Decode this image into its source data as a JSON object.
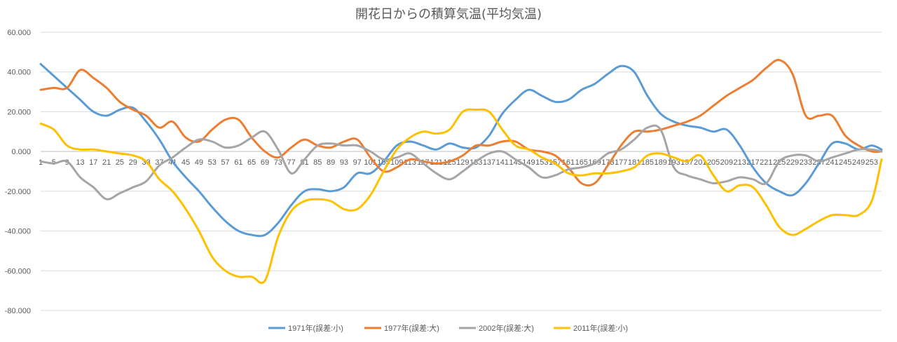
{
  "chart_data": {
    "type": "line",
    "title": "開花日からの積算気温(平均気温)",
    "xlabel": "",
    "ylabel": "",
    "ylim": [
      -80,
      60
    ],
    "yticks": [
      60,
      40,
      20,
      0,
      -20,
      -40,
      -60,
      -80
    ],
    "ytick_labels": [
      "60.000",
      "40.000",
      "20.000",
      "0.000",
      "-20.000",
      "-40.000",
      "-60.000",
      "-80.000"
    ],
    "x_range": [
      1,
      256
    ],
    "x_tick_labels": [
      1,
      5,
      9,
      13,
      17,
      21,
      25,
      29,
      33,
      37,
      41,
      45,
      49,
      53,
      57,
      61,
      65,
      69,
      73,
      77,
      81,
      85,
      89,
      93,
      97,
      101,
      105,
      109,
      113,
      117,
      121,
      125,
      129,
      133,
      137,
      141,
      145,
      149,
      153,
      157,
      161,
      165,
      169,
      173,
      177,
      181,
      185,
      189,
      193,
      197,
      201,
      205,
      209,
      213,
      217,
      221,
      225,
      229,
      233,
      237,
      241,
      245,
      249,
      253
    ],
    "grid": true,
    "legend_position": "bottom",
    "series": [
      {
        "name": "1971年(誤差:小)",
        "color": "#5b9bd5",
        "x": [
          1,
          5,
          9,
          13,
          17,
          21,
          25,
          29,
          33,
          37,
          41,
          45,
          49,
          53,
          57,
          61,
          65,
          69,
          73,
          77,
          81,
          85,
          89,
          93,
          97,
          101,
          105,
          109,
          113,
          117,
          121,
          125,
          129,
          133,
          137,
          141,
          145,
          149,
          153,
          157,
          161,
          165,
          169,
          173,
          177,
          181,
          185,
          189,
          193,
          197,
          201,
          205,
          209,
          213,
          217,
          221,
          225,
          229,
          233,
          237,
          241,
          245,
          249,
          253,
          256
        ],
        "y": [
          44,
          38,
          32,
          26,
          20,
          18,
          21,
          22,
          15,
          6,
          -5,
          -13,
          -20,
          -28,
          -35,
          -40,
          -42,
          -42,
          -36,
          -27,
          -20,
          -19,
          -20,
          -18,
          -11,
          -11,
          -5,
          3,
          5,
          3,
          1,
          4,
          2,
          2,
          8,
          19,
          26,
          31,
          28,
          25,
          26,
          31,
          34,
          39,
          43,
          40,
          28,
          19,
          15,
          13,
          12,
          10,
          11,
          3,
          -8,
          -16,
          -20,
          -22,
          -16,
          -6,
          4,
          4,
          1,
          3,
          1
        ]
      },
      {
        "name": "1977年(誤差:大)",
        "color": "#ed7d31",
        "x": [
          1,
          5,
          9,
          13,
          17,
          21,
          25,
          29,
          33,
          37,
          41,
          45,
          49,
          53,
          57,
          61,
          65,
          69,
          73,
          77,
          81,
          85,
          89,
          93,
          97,
          101,
          105,
          109,
          113,
          117,
          121,
          125,
          129,
          133,
          137,
          141,
          145,
          149,
          153,
          157,
          161,
          165,
          169,
          173,
          177,
          181,
          185,
          189,
          193,
          197,
          201,
          205,
          209,
          213,
          217,
          221,
          225,
          229,
          233,
          237,
          241,
          245,
          249,
          253,
          256
        ],
        "y": [
          31,
          32,
          32,
          41,
          37,
          32,
          25,
          21,
          18,
          12,
          15,
          7,
          5,
          11,
          16,
          16,
          7,
          0,
          -3,
          2,
          6,
          3,
          2,
          5,
          6,
          -3,
          -10,
          -8,
          -4,
          -5,
          -6,
          -5,
          -2,
          3,
          3,
          5,
          5,
          1,
          0,
          -2,
          -8,
          -16,
          -16,
          -7,
          3,
          10,
          10,
          11,
          13,
          15,
          18,
          23,
          28,
          32,
          36,
          42,
          46,
          39,
          18,
          18,
          18,
          8,
          3,
          0,
          0
        ]
      },
      {
        "name": "2002年(誤差:大)",
        "color": "#a5a5a5",
        "x": [
          1,
          5,
          9,
          13,
          17,
          21,
          25,
          29,
          33,
          37,
          41,
          45,
          49,
          53,
          57,
          61,
          65,
          69,
          73,
          77,
          81,
          85,
          89,
          93,
          97,
          101,
          105,
          109,
          113,
          117,
          121,
          125,
          129,
          133,
          137,
          141,
          145,
          149,
          153,
          157,
          161,
          165,
          169,
          173,
          177,
          181,
          185,
          189,
          193,
          197,
          201,
          205,
          209,
          213,
          217,
          221,
          225,
          229,
          233,
          237,
          241,
          245,
          249,
          253,
          256
        ],
        "y": [
          -5,
          -6,
          -5,
          -13,
          -18,
          -24,
          -21,
          -18,
          -15,
          -7,
          -3,
          2,
          6,
          5,
          2,
          3,
          7,
          10,
          1,
          -11,
          -4,
          3,
          4,
          3,
          3,
          0,
          -4,
          -3,
          -1,
          -6,
          -11,
          -14,
          -10,
          -5,
          -1,
          0,
          -4,
          -8,
          -13,
          -12,
          -9,
          -8,
          -6,
          -1,
          1,
          6,
          12,
          11,
          -8,
          -12,
          -14,
          -16,
          -15,
          -13,
          -14,
          -16,
          -5,
          -2,
          -2,
          -5,
          -3,
          -1,
          1,
          1,
          0
        ]
      },
      {
        "name": "2011年(誤差:小)",
        "color": "#ffc000",
        "x": [
          1,
          5,
          9,
          13,
          17,
          21,
          25,
          29,
          33,
          37,
          41,
          45,
          49,
          53,
          57,
          61,
          65,
          69,
          73,
          77,
          81,
          85,
          89,
          93,
          97,
          101,
          105,
          109,
          113,
          117,
          121,
          125,
          129,
          133,
          137,
          141,
          145,
          149,
          153,
          157,
          161,
          165,
          169,
          173,
          177,
          181,
          185,
          189,
          193,
          197,
          201,
          205,
          209,
          213,
          217,
          221,
          225,
          229,
          233,
          237,
          241,
          245,
          249,
          253,
          256
        ],
        "y": [
          14,
          11,
          3,
          1,
          1,
          0,
          -1,
          -2,
          -5,
          -14,
          -20,
          -29,
          -40,
          -53,
          -60,
          -63,
          -63,
          -65,
          -43,
          -30,
          -25,
          -24,
          -25,
          -29,
          -29,
          -22,
          -10,
          1,
          7,
          10,
          9,
          11,
          20,
          21,
          20,
          11,
          3,
          1,
          -3,
          -6,
          -11,
          -12,
          -11,
          -11,
          -10,
          -8,
          -2,
          -1,
          -3,
          -5,
          -2,
          -12,
          -20,
          -17,
          -18,
          -27,
          -38,
          -42,
          -39,
          -35,
          -32,
          -32,
          -32,
          -25,
          -4
        ]
      }
    ]
  }
}
